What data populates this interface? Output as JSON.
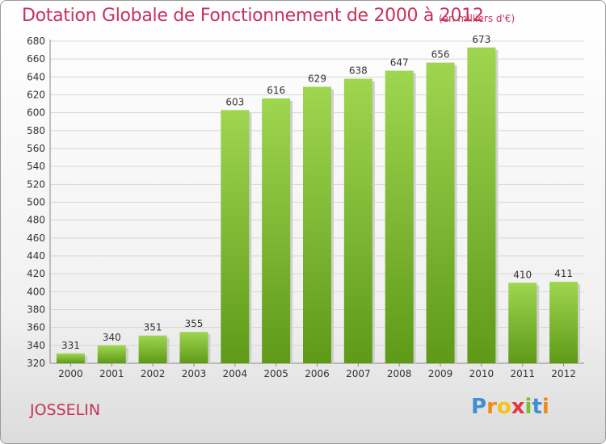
{
  "header": {
    "title": "Dotation Globale de Fonctionnement de 2000 à 2012",
    "unit": "(en milliers d'€)"
  },
  "footer": {
    "commune": "JOSSELIN",
    "logo_letters": [
      "P",
      "r",
      "o",
      "x",
      "i",
      "t",
      "i"
    ]
  },
  "colors": {
    "title": "#c8325a",
    "bar_top": "#9fd650",
    "bar_bottom": "#5e9a18",
    "grid": "#d6d6d6"
  },
  "chart_data": {
    "type": "bar",
    "title": "Dotation Globale de Fonctionnement de 2000 à 2012",
    "xlabel": "",
    "ylabel": "",
    "categories": [
      "2000",
      "2001",
      "2002",
      "2003",
      "2004",
      "2005",
      "2006",
      "2007",
      "2008",
      "2009",
      "2010",
      "2011",
      "2012"
    ],
    "values": [
      331,
      340,
      351,
      355,
      603,
      616,
      629,
      638,
      647,
      656,
      673,
      410,
      411
    ],
    "ylim": [
      320,
      680
    ],
    "yticks": [
      320,
      340,
      360,
      380,
      400,
      420,
      440,
      460,
      480,
      500,
      520,
      540,
      560,
      580,
      600,
      620,
      640,
      660,
      680
    ],
    "grid": true,
    "data_labels": true
  }
}
